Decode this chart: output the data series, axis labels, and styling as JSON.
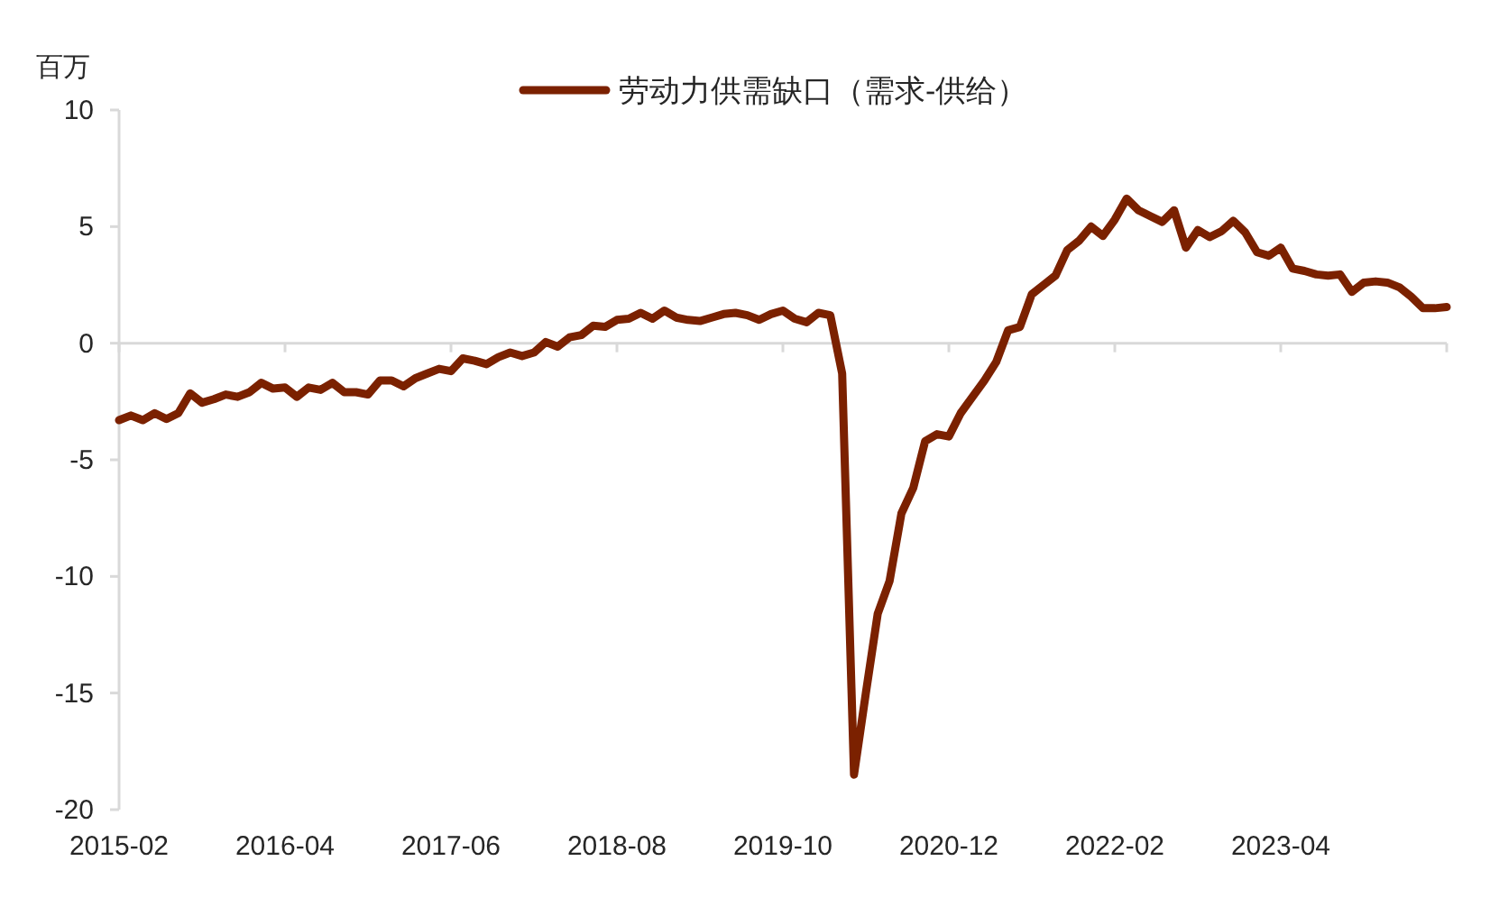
{
  "chart_data": {
    "type": "line",
    "ylabel": "百万",
    "legend": "top",
    "categories": [
      "2015-02",
      null,
      null,
      null,
      null,
      null,
      null,
      null,
      null,
      null,
      null,
      null,
      null,
      null,
      "2016-04",
      null,
      null,
      null,
      null,
      null,
      null,
      null,
      null,
      null,
      null,
      null,
      null,
      null,
      "2017-06",
      null,
      null,
      null,
      null,
      null,
      null,
      null,
      null,
      null,
      null,
      null,
      null,
      null,
      "2018-08",
      null,
      null,
      null,
      null,
      null,
      null,
      null,
      null,
      null,
      null,
      null,
      null,
      null,
      "2019-10",
      null,
      null,
      null,
      null,
      null,
      null,
      null,
      null,
      null,
      null,
      null,
      null,
      null,
      "2020-12",
      null,
      null,
      null,
      null,
      null,
      null,
      null,
      null,
      null,
      null,
      null,
      null,
      null,
      "2022-02",
      null,
      null,
      null,
      null,
      null,
      null,
      null,
      null,
      null,
      null,
      null,
      null,
      null,
      "2023-04",
      null,
      null,
      null,
      null,
      null,
      null,
      null,
      null,
      null,
      null,
      null,
      null,
      null,
      null
    ],
    "ylim": [
      -20,
      10
    ],
    "yticks": [
      -20,
      -15,
      -10,
      -5,
      0,
      5,
      10
    ],
    "series": [
      {
        "name": "劳动力供需缺口（需求-供给）",
        "color": "#7b2100",
        "values": [
          -3.3,
          -3.1,
          -3.3,
          -3.0,
          -3.25,
          -3.0,
          -2.15,
          -2.55,
          -2.4,
          -2.2,
          -2.3,
          -2.1,
          -1.7,
          -1.95,
          -1.9,
          -2.3,
          -1.9,
          -2.0,
          -1.7,
          -2.1,
          -2.1,
          -2.2,
          -1.6,
          -1.6,
          -1.85,
          -1.5,
          -1.3,
          -1.1,
          -1.2,
          -0.65,
          -0.75,
          -0.9,
          -0.6,
          -0.4,
          -0.55,
          -0.4,
          0.05,
          -0.15,
          0.25,
          0.35,
          0.75,
          0.7,
          1.0,
          1.05,
          1.3,
          1.05,
          1.4,
          1.1,
          1.0,
          0.95,
          1.1,
          1.25,
          1.3,
          1.2,
          1.0,
          1.25,
          1.4,
          1.05,
          0.9,
          1.3,
          1.2,
          -1.3,
          -18.5,
          -15,
          -11.6,
          -10.2,
          -7.3,
          -6.2,
          -4.2,
          -3.9,
          -4.0,
          -3.0,
          -2.3,
          -1.6,
          -0.8,
          0.55,
          0.7,
          2.1,
          2.5,
          2.9,
          4.0,
          4.4,
          5.0,
          4.6,
          5.3,
          6.2,
          5.7,
          5.45,
          5.2,
          5.7,
          4.1,
          4.85,
          4.55,
          4.8,
          5.25,
          4.75,
          3.9,
          3.75,
          4.1,
          3.2,
          3.1,
          2.95,
          2.9,
          2.95,
          2.2,
          2.6,
          2.65,
          2.6,
          2.4,
          2.0,
          1.5,
          1.5,
          1.55
        ]
      }
    ]
  }
}
